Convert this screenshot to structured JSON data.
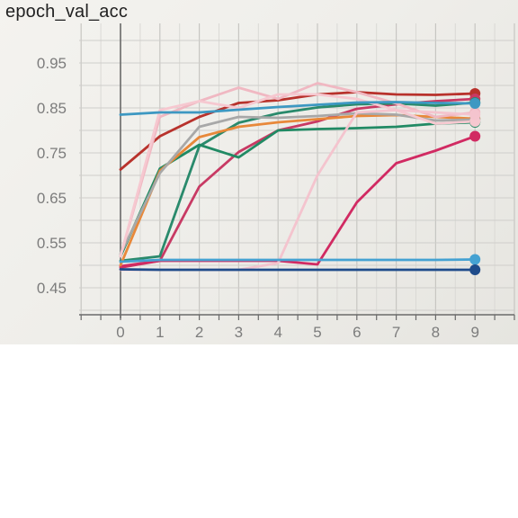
{
  "title": "epoch_val_acc",
  "chart_data": {
    "type": "line",
    "title": "epoch_val_acc",
    "xlabel": "",
    "ylabel": "",
    "xlim": [
      -1,
      10
    ],
    "ylim": [
      0.4,
      1.0
    ],
    "x_ticks": [
      "0",
      "1",
      "2",
      "3",
      "4",
      "5",
      "6",
      "7",
      "8",
      "9"
    ],
    "y_ticks": [
      "0.95",
      "0.85",
      "0.75",
      "0.65",
      "0.55",
      "0.45"
    ],
    "grid": true,
    "legend": "none",
    "x": [
      0,
      1,
      2,
      3,
      4,
      5,
      6,
      7,
      8,
      9
    ],
    "series": [
      {
        "color": "#b8322c",
        "values": [
          0.713,
          0.787,
          0.83,
          0.861,
          0.867,
          0.88,
          0.885,
          0.88,
          0.879,
          0.882
        ]
      },
      {
        "color": "#c83a64",
        "values": [
          0.495,
          0.51,
          0.675,
          0.752,
          0.8,
          0.82,
          0.848,
          0.858,
          0.865,
          0.87
        ]
      },
      {
        "color": "#d12a62",
        "values": [
          0.498,
          0.51,
          0.51,
          0.51,
          0.51,
          0.502,
          0.64,
          0.727,
          0.755,
          0.787
        ]
      },
      {
        "color": "#2a8a6c",
        "values": [
          0.51,
          0.52,
          0.765,
          0.817,
          0.838,
          0.851,
          0.858,
          0.86,
          0.855,
          0.862
        ]
      },
      {
        "color": "#218a64",
        "values": [
          0.52,
          0.715,
          0.768,
          0.74,
          0.8,
          0.803,
          0.805,
          0.808,
          0.815,
          0.818
        ]
      },
      {
        "color": "#e8883a",
        "values": [
          0.5,
          0.71,
          0.785,
          0.808,
          0.818,
          0.825,
          0.832,
          0.834,
          0.83,
          0.826
        ]
      },
      {
        "color": "#a8a8a8",
        "values": [
          0.525,
          0.705,
          0.808,
          0.83,
          0.828,
          0.832,
          0.838,
          0.835,
          0.822,
          0.824
        ]
      },
      {
        "color": "#f0b8c2",
        "values": [
          0.52,
          0.83,
          0.865,
          0.895,
          0.87,
          0.905,
          0.885,
          0.86,
          0.83,
          0.84
        ]
      },
      {
        "color": "#f6c8d0",
        "values": [
          0.52,
          0.845,
          0.865,
          0.85,
          0.88,
          0.88,
          0.87,
          0.845,
          0.815,
          0.82
        ]
      },
      {
        "color": "#f4c4ce",
        "values": [
          0.49,
          0.49,
          0.49,
          0.49,
          0.505,
          0.7,
          0.84,
          0.845,
          0.84,
          0.835
        ]
      },
      {
        "color": "#3d98c2",
        "values": [
          0.835,
          0.84,
          0.84,
          0.846,
          0.852,
          0.857,
          0.862,
          0.863,
          0.861,
          0.86
        ]
      },
      {
        "color": "#45a2d2",
        "values": [
          0.508,
          0.512,
          0.512,
          0.512,
          0.512,
          0.512,
          0.512,
          0.512,
          0.512,
          0.513
        ]
      },
      {
        "color": "#1e4b8a",
        "values": [
          0.491,
          0.49,
          0.49,
          0.49,
          0.49,
          0.49,
          0.49,
          0.49,
          0.49,
          0.49
        ]
      }
    ]
  }
}
